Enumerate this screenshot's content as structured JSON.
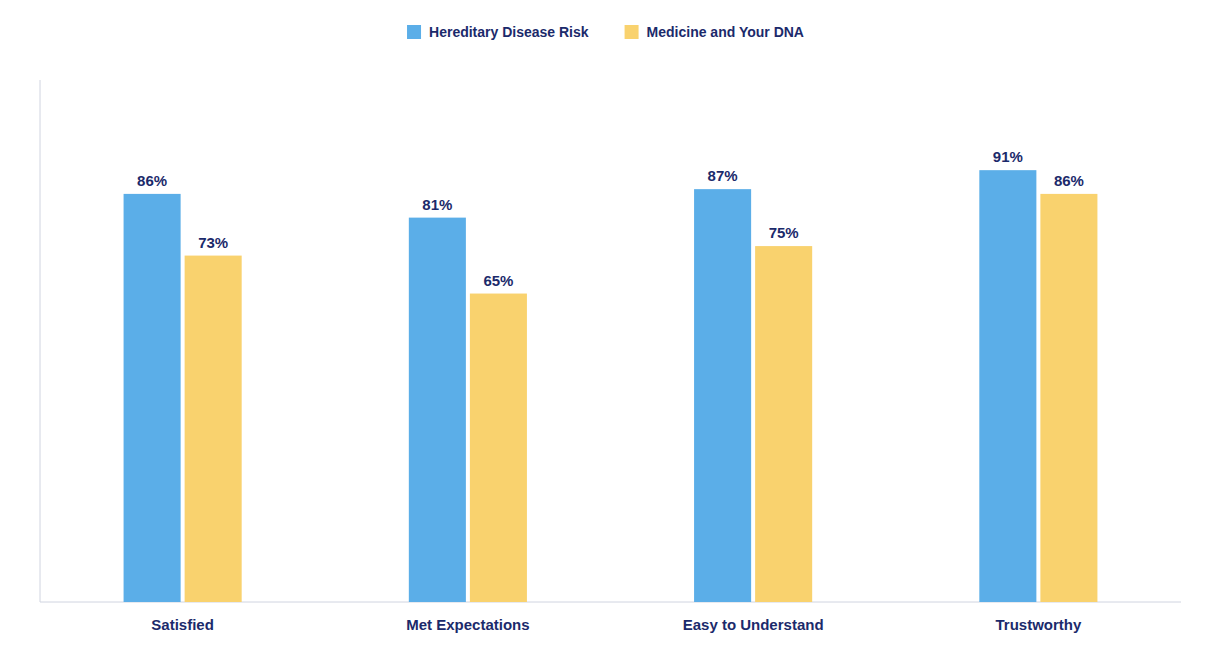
{
  "chart_data": {
    "type": "bar",
    "categories": [
      "Satisfied",
      "Met Expectations",
      "Easy to Understand",
      "Trustworthy"
    ],
    "series": [
      {
        "name": "Hereditary Disease Risk",
        "color": "#5BAEE8",
        "values": [
          86,
          81,
          87,
          91
        ],
        "value_labels": [
          "86%",
          "81%",
          "87%",
          "91%"
        ]
      },
      {
        "name": "Medicine and Your DNA",
        "color": "#F9D26E",
        "values": [
          73,
          65,
          75,
          86
        ],
        "value_labels": [
          "73%",
          "65%",
          "75%",
          "86%"
        ]
      }
    ],
    "ylim": [
      0,
      110
    ],
    "grid": false,
    "legend": "top",
    "data_labels": true,
    "tick_labels": "x"
  }
}
